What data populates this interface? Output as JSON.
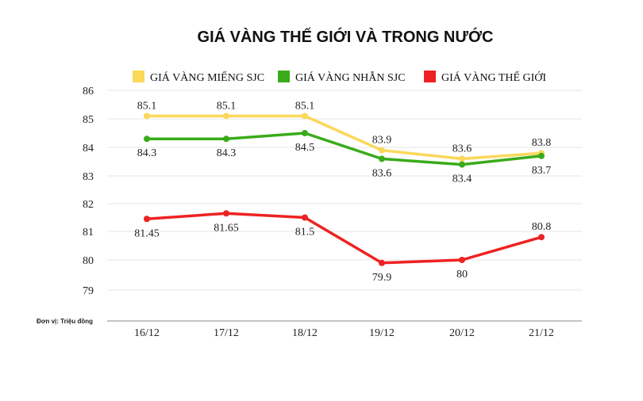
{
  "chart_data": {
    "type": "line",
    "title": "GIÁ VÀNG THẾ GIỚI VÀ TRONG NƯỚC",
    "unit_note": "Đơn vị: Triệu đồng",
    "categories": [
      "16/12",
      "17/12",
      "18/12",
      "19/12",
      "20/12",
      "21/12"
    ],
    "y_ticks": [
      {
        "value": 86,
        "label": "86"
      },
      {
        "value": 85,
        "label": "85"
      },
      {
        "value": 84,
        "label": "84"
      },
      {
        "value": 83,
        "label": "83"
      },
      {
        "value": 82,
        "label": "82"
      },
      {
        "value": 81,
        "label": "81"
      },
      {
        "value": 80,
        "label": "80"
      },
      {
        "value": 79,
        "label": "79"
      }
    ],
    "legend_position": "top",
    "grid": true,
    "series": [
      {
        "name": "GIÁ VÀNG MIẾNG SJC",
        "color": "#fad85a",
        "values": [
          85.1,
          85.1,
          85.1,
          83.9,
          83.6,
          83.8
        ],
        "labels": [
          "85.1",
          "85.1",
          "85.1",
          "83.9",
          "83.6",
          "83.8"
        ]
      },
      {
        "name": "GIÁ VÀNG NHẪN SJC",
        "color": "#3aab1a",
        "values": [
          84.3,
          84.3,
          84.5,
          83.6,
          83.4,
          83.7
        ],
        "labels": [
          "84.3",
          "84.3",
          "84.5",
          "83.6",
          "83.4",
          "83.7"
        ]
      },
      {
        "name": "GIÁ VÀNG THẾ GIỚI",
        "color": "#ee2222",
        "values": [
          81.45,
          81.65,
          81.5,
          79.9,
          80,
          80.8
        ],
        "labels": [
          "81.45",
          "81.65",
          "81.5",
          "79.9",
          "80",
          "80.8"
        ]
      }
    ]
  }
}
